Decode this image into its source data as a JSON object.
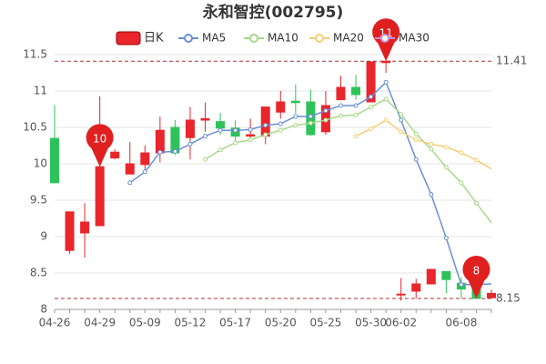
{
  "chart_data": {
    "type": "candlestick",
    "title": "永和智控(002795)",
    "categories": [
      "04-26",
      null,
      null,
      "04-29",
      null,
      null,
      "05-09",
      null,
      null,
      "05-12",
      null,
      null,
      "05-17",
      null,
      null,
      "05-20",
      null,
      null,
      "05-25",
      null,
      null,
      "05-30",
      null,
      "06-02",
      null,
      null,
      null,
      "06-08",
      null,
      null
    ],
    "candle": {
      "name": "日K",
      "up_color": "#e8262b",
      "down_color": "#2fc25b",
      "open": [
        10.35,
        8.81,
        9.05,
        9.15,
        10.08,
        9.86,
        9.99,
        10.15,
        10.5,
        10.36,
        10.6,
        10.58,
        10.49,
        10.38,
        10.38,
        10.71,
        10.86,
        10.85,
        10.44,
        10.88,
        11.05,
        10.85,
        11.39,
        8.2,
        8.25,
        8.35,
        8.52,
        8.36,
        8.28,
        8.16
      ],
      "high": [
        10.81,
        9.34,
        9.46,
        10.93,
        10.2,
        10.3,
        10.25,
        10.65,
        10.6,
        10.78,
        10.84,
        10.7,
        10.6,
        10.62,
        10.78,
        11.0,
        11.09,
        11.02,
        11.0,
        11.21,
        11.22,
        11.4,
        11.41,
        8.43,
        8.42,
        8.55,
        8.52,
        8.44,
        8.3,
        8.27
      ],
      "low": [
        9.73,
        8.76,
        8.71,
        9.15,
        10.06,
        9.86,
        9.92,
        10.02,
        10.12,
        10.06,
        10.44,
        10.4,
        10.31,
        10.35,
        10.27,
        10.62,
        10.69,
        10.38,
        10.4,
        10.88,
        10.88,
        10.85,
        11.25,
        8.12,
        8.15,
        8.35,
        8.22,
        8.15,
        8.16,
        8.15
      ],
      "close": [
        9.74,
        9.34,
        9.2,
        9.96,
        10.16,
        10.0,
        10.15,
        10.46,
        10.15,
        10.6,
        10.62,
        10.49,
        10.38,
        10.4,
        10.78,
        10.85,
        10.84,
        10.4,
        10.8,
        11.05,
        10.95,
        11.4,
        11.41,
        8.21,
        8.35,
        8.55,
        8.41,
        8.28,
        8.15,
        8.22
      ]
    },
    "series": [
      {
        "name": "MA5",
        "color": "#6b8fd6",
        "values": [
          null,
          null,
          null,
          null,
          null,
          9.74,
          9.89,
          10.16,
          10.17,
          10.27,
          10.38,
          10.46,
          10.46,
          10.47,
          10.53,
          10.55,
          10.65,
          10.65,
          10.73,
          10.8,
          10.8,
          10.92,
          11.12,
          10.6,
          10.06,
          9.58,
          8.98,
          8.34,
          8.34,
          8.35
        ]
      },
      {
        "name": "MA10",
        "color": "#a6d98a",
        "values": [
          null,
          null,
          null,
          null,
          null,
          null,
          null,
          null,
          null,
          null,
          10.06,
          10.19,
          10.29,
          10.33,
          10.4,
          10.46,
          10.53,
          10.56,
          10.6,
          10.66,
          10.67,
          10.78,
          10.89,
          10.68,
          10.41,
          10.2,
          9.95,
          9.74,
          9.46,
          9.19
        ]
      },
      {
        "name": "MA20",
        "color": "#f5cd75",
        "values": [
          null,
          null,
          null,
          null,
          null,
          null,
          null,
          null,
          null,
          null,
          null,
          null,
          null,
          null,
          null,
          null,
          null,
          null,
          null,
          null,
          10.38,
          10.48,
          10.6,
          10.44,
          10.33,
          10.27,
          10.23,
          10.15,
          10.05,
          9.93
        ]
      },
      {
        "name": "MA30",
        "color": "#c690d8",
        "values": [
          null,
          null,
          null,
          null,
          null,
          null,
          null,
          null,
          null,
          null,
          null,
          null,
          null,
          null,
          null,
          null,
          null,
          null,
          null,
          null,
          null,
          null,
          null,
          null,
          null,
          null,
          null,
          null,
          null,
          null
        ]
      }
    ],
    "pins": [
      {
        "value": 9.96,
        "label": "10"
      },
      {
        "value": 11.41,
        "label": "11"
      },
      {
        "value": 8.15,
        "label": "8"
      }
    ],
    "hlines": [
      11.41,
      8.15
    ],
    "ylim": [
      8,
      11.5
    ],
    "yticks": [
      8,
      8.5,
      9,
      9.5,
      10,
      10.5,
      11,
      11.5
    ],
    "grid": true
  }
}
